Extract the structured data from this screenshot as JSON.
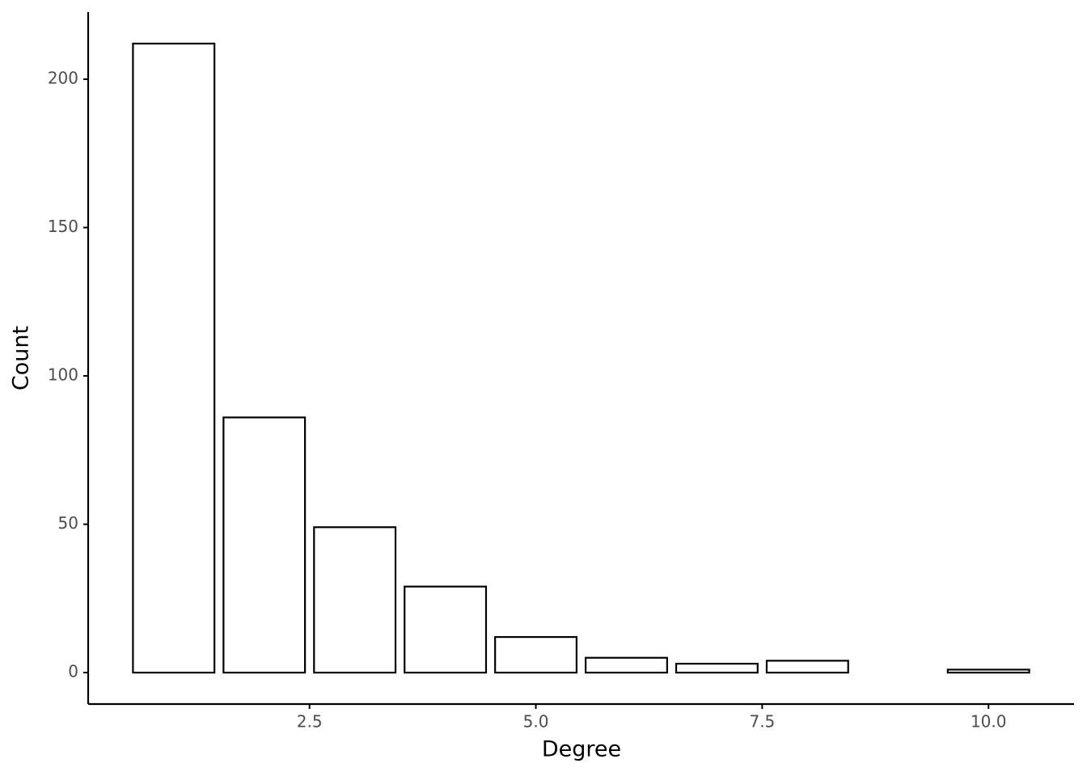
{
  "chart_data": {
    "type": "bar",
    "x_label": "Degree",
    "y_label": "Count",
    "x": [
      1,
      2,
      3,
      4,
      5,
      6,
      7,
      8,
      10
    ],
    "values": [
      212,
      86,
      49,
      29,
      12,
      5,
      3,
      4,
      1
    ],
    "color": "#ffffff",
    "edge_color": "#000000",
    "xlim": [
      0.055,
      10.945
    ],
    "xticks": [
      2.5,
      {
        "value": 5,
        "label": "5.0"
      },
      7.5,
      {
        "value": 10,
        "label": "10.0"
      }
    ],
    "ylim": [
      -10.6,
      222.6
    ],
    "yticks": [
      0,
      50,
      100,
      150,
      200
    ],
    "grid": false
  }
}
